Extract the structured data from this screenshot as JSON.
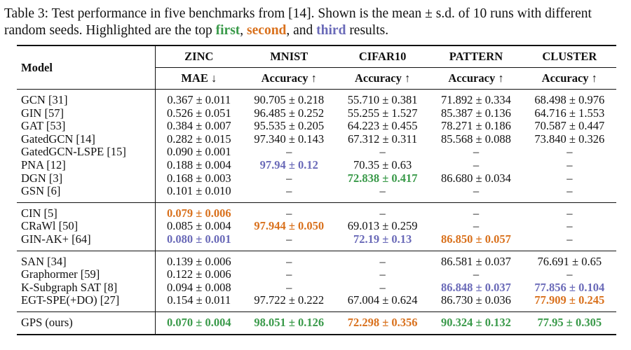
{
  "caption": {
    "prefix": "Table 3: Test performance in five benchmarks from [14]. Shown is the mean ± s.d. of 10 runs with different random seeds. Highlighted are the top ",
    "first": "first",
    "sep1": ", ",
    "second": "second",
    "sep2": ", and ",
    "third": "third",
    "suffix": " results."
  },
  "header": {
    "model": "Model",
    "datasets": [
      "ZINC",
      "MNIST",
      "CIFAR10",
      "PATTERN",
      "CLUSTER"
    ],
    "metrics": [
      "MAE ↓",
      "Accuracy ↑",
      "Accuracy ↑",
      "Accuracy ↑",
      "Accuracy ↑"
    ]
  },
  "groups": [
    [
      {
        "model": "GCN [31]",
        "cells": [
          [
            "0.367 ± 0.011",
            ""
          ],
          [
            "90.705 ± 0.218",
            ""
          ],
          [
            "55.710 ± 0.381",
            ""
          ],
          [
            "71.892 ± 0.334",
            ""
          ],
          [
            "68.498 ± 0.976",
            ""
          ]
        ]
      },
      {
        "model": "GIN [57]",
        "cells": [
          [
            "0.526 ± 0.051",
            ""
          ],
          [
            "96.485 ± 0.252",
            ""
          ],
          [
            "55.255 ± 1.527",
            ""
          ],
          [
            "85.387 ± 0.136",
            ""
          ],
          [
            "64.716 ± 1.553",
            ""
          ]
        ]
      },
      {
        "model": "GAT [53]",
        "cells": [
          [
            "0.384 ± 0.007",
            ""
          ],
          [
            "95.535 ± 0.205",
            ""
          ],
          [
            "64.223 ± 0.455",
            ""
          ],
          [
            "78.271 ± 0.186",
            ""
          ],
          [
            "70.587 ± 0.447",
            ""
          ]
        ]
      },
      {
        "model": "GatedGCN [14]",
        "cells": [
          [
            "0.282 ± 0.015",
            ""
          ],
          [
            "97.340 ± 0.143",
            ""
          ],
          [
            "67.312 ± 0.311",
            ""
          ],
          [
            "85.568 ± 0.088",
            ""
          ],
          [
            "73.840 ± 0.326",
            ""
          ]
        ]
      },
      {
        "model": "GatedGCN-LSPE [15]",
        "cells": [
          [
            "0.090 ± 0.001",
            ""
          ],
          [
            "–",
            ""
          ],
          [
            "–",
            ""
          ],
          [
            "–",
            ""
          ],
          [
            "–",
            ""
          ]
        ]
      },
      {
        "model": "PNA [12]",
        "cells": [
          [
            "0.188 ± 0.004",
            ""
          ],
          [
            "97.94 ± 0.12",
            "third"
          ],
          [
            "70.35 ± 0.63",
            ""
          ],
          [
            "–",
            ""
          ],
          [
            "–",
            ""
          ]
        ]
      },
      {
        "model": "DGN [3]",
        "cells": [
          [
            "0.168 ± 0.003",
            ""
          ],
          [
            "–",
            ""
          ],
          [
            "72.838 ± 0.417",
            "first"
          ],
          [
            "86.680 ± 0.034",
            ""
          ],
          [
            "–",
            ""
          ]
        ]
      },
      {
        "model": "GSN [6]",
        "cells": [
          [
            "0.101 ± 0.010",
            ""
          ],
          [
            "–",
            ""
          ],
          [
            "–",
            ""
          ],
          [
            "–",
            ""
          ],
          [
            "–",
            ""
          ]
        ]
      }
    ],
    [
      {
        "model": "CIN [5]",
        "cells": [
          [
            "0.079 ± 0.006",
            "second"
          ],
          [
            "–",
            ""
          ],
          [
            "–",
            ""
          ],
          [
            "–",
            ""
          ],
          [
            "–",
            ""
          ]
        ]
      },
      {
        "model": "CRaWl [50]",
        "cells": [
          [
            "0.085 ± 0.004",
            ""
          ],
          [
            "97.944 ± 0.050",
            "second"
          ],
          [
            "69.013 ± 0.259",
            ""
          ],
          [
            "–",
            ""
          ],
          [
            "–",
            ""
          ]
        ]
      },
      {
        "model": "GIN-AK+ [64]",
        "cells": [
          [
            "0.080 ± 0.001",
            "third"
          ],
          [
            "–",
            ""
          ],
          [
            "72.19 ± 0.13",
            "third"
          ],
          [
            "86.850 ± 0.057",
            "second"
          ],
          [
            "–",
            ""
          ]
        ]
      }
    ],
    [
      {
        "model": "SAN [34]",
        "cells": [
          [
            "0.139 ± 0.006",
            ""
          ],
          [
            "–",
            ""
          ],
          [
            "–",
            ""
          ],
          [
            "86.581 ± 0.037",
            ""
          ],
          [
            "76.691 ± 0.65",
            ""
          ]
        ]
      },
      {
        "model": "Graphormer [59]",
        "cells": [
          [
            "0.122 ± 0.006",
            ""
          ],
          [
            "–",
            ""
          ],
          [
            "–",
            ""
          ],
          [
            "–",
            ""
          ],
          [
            "–",
            ""
          ]
        ]
      },
      {
        "model": "K-Subgraph SAT [8]",
        "cells": [
          [
            "0.094 ± 0.008",
            ""
          ],
          [
            "–",
            ""
          ],
          [
            "–",
            ""
          ],
          [
            "86.848 ± 0.037",
            "third"
          ],
          [
            "77.856 ± 0.104",
            "third"
          ]
        ]
      },
      {
        "model": "EGT-SPE(+DO) [27]",
        "cells": [
          [
            "0.154 ± 0.011",
            ""
          ],
          [
            "97.722 ± 0.222",
            ""
          ],
          [
            "67.004 ± 0.624",
            ""
          ],
          [
            "86.730 ± 0.036",
            ""
          ],
          [
            "77.909 ± 0.245",
            "second"
          ]
        ]
      }
    ],
    [
      {
        "model": "GPS (ours)",
        "cells": [
          [
            "0.070 ± 0.004",
            "first"
          ],
          [
            "98.051 ± 0.126",
            "first"
          ],
          [
            "72.298 ± 0.356",
            "second"
          ],
          [
            "90.324 ± 0.132",
            "first"
          ],
          [
            "77.95 ± 0.305",
            "first"
          ]
        ]
      }
    ]
  ]
}
